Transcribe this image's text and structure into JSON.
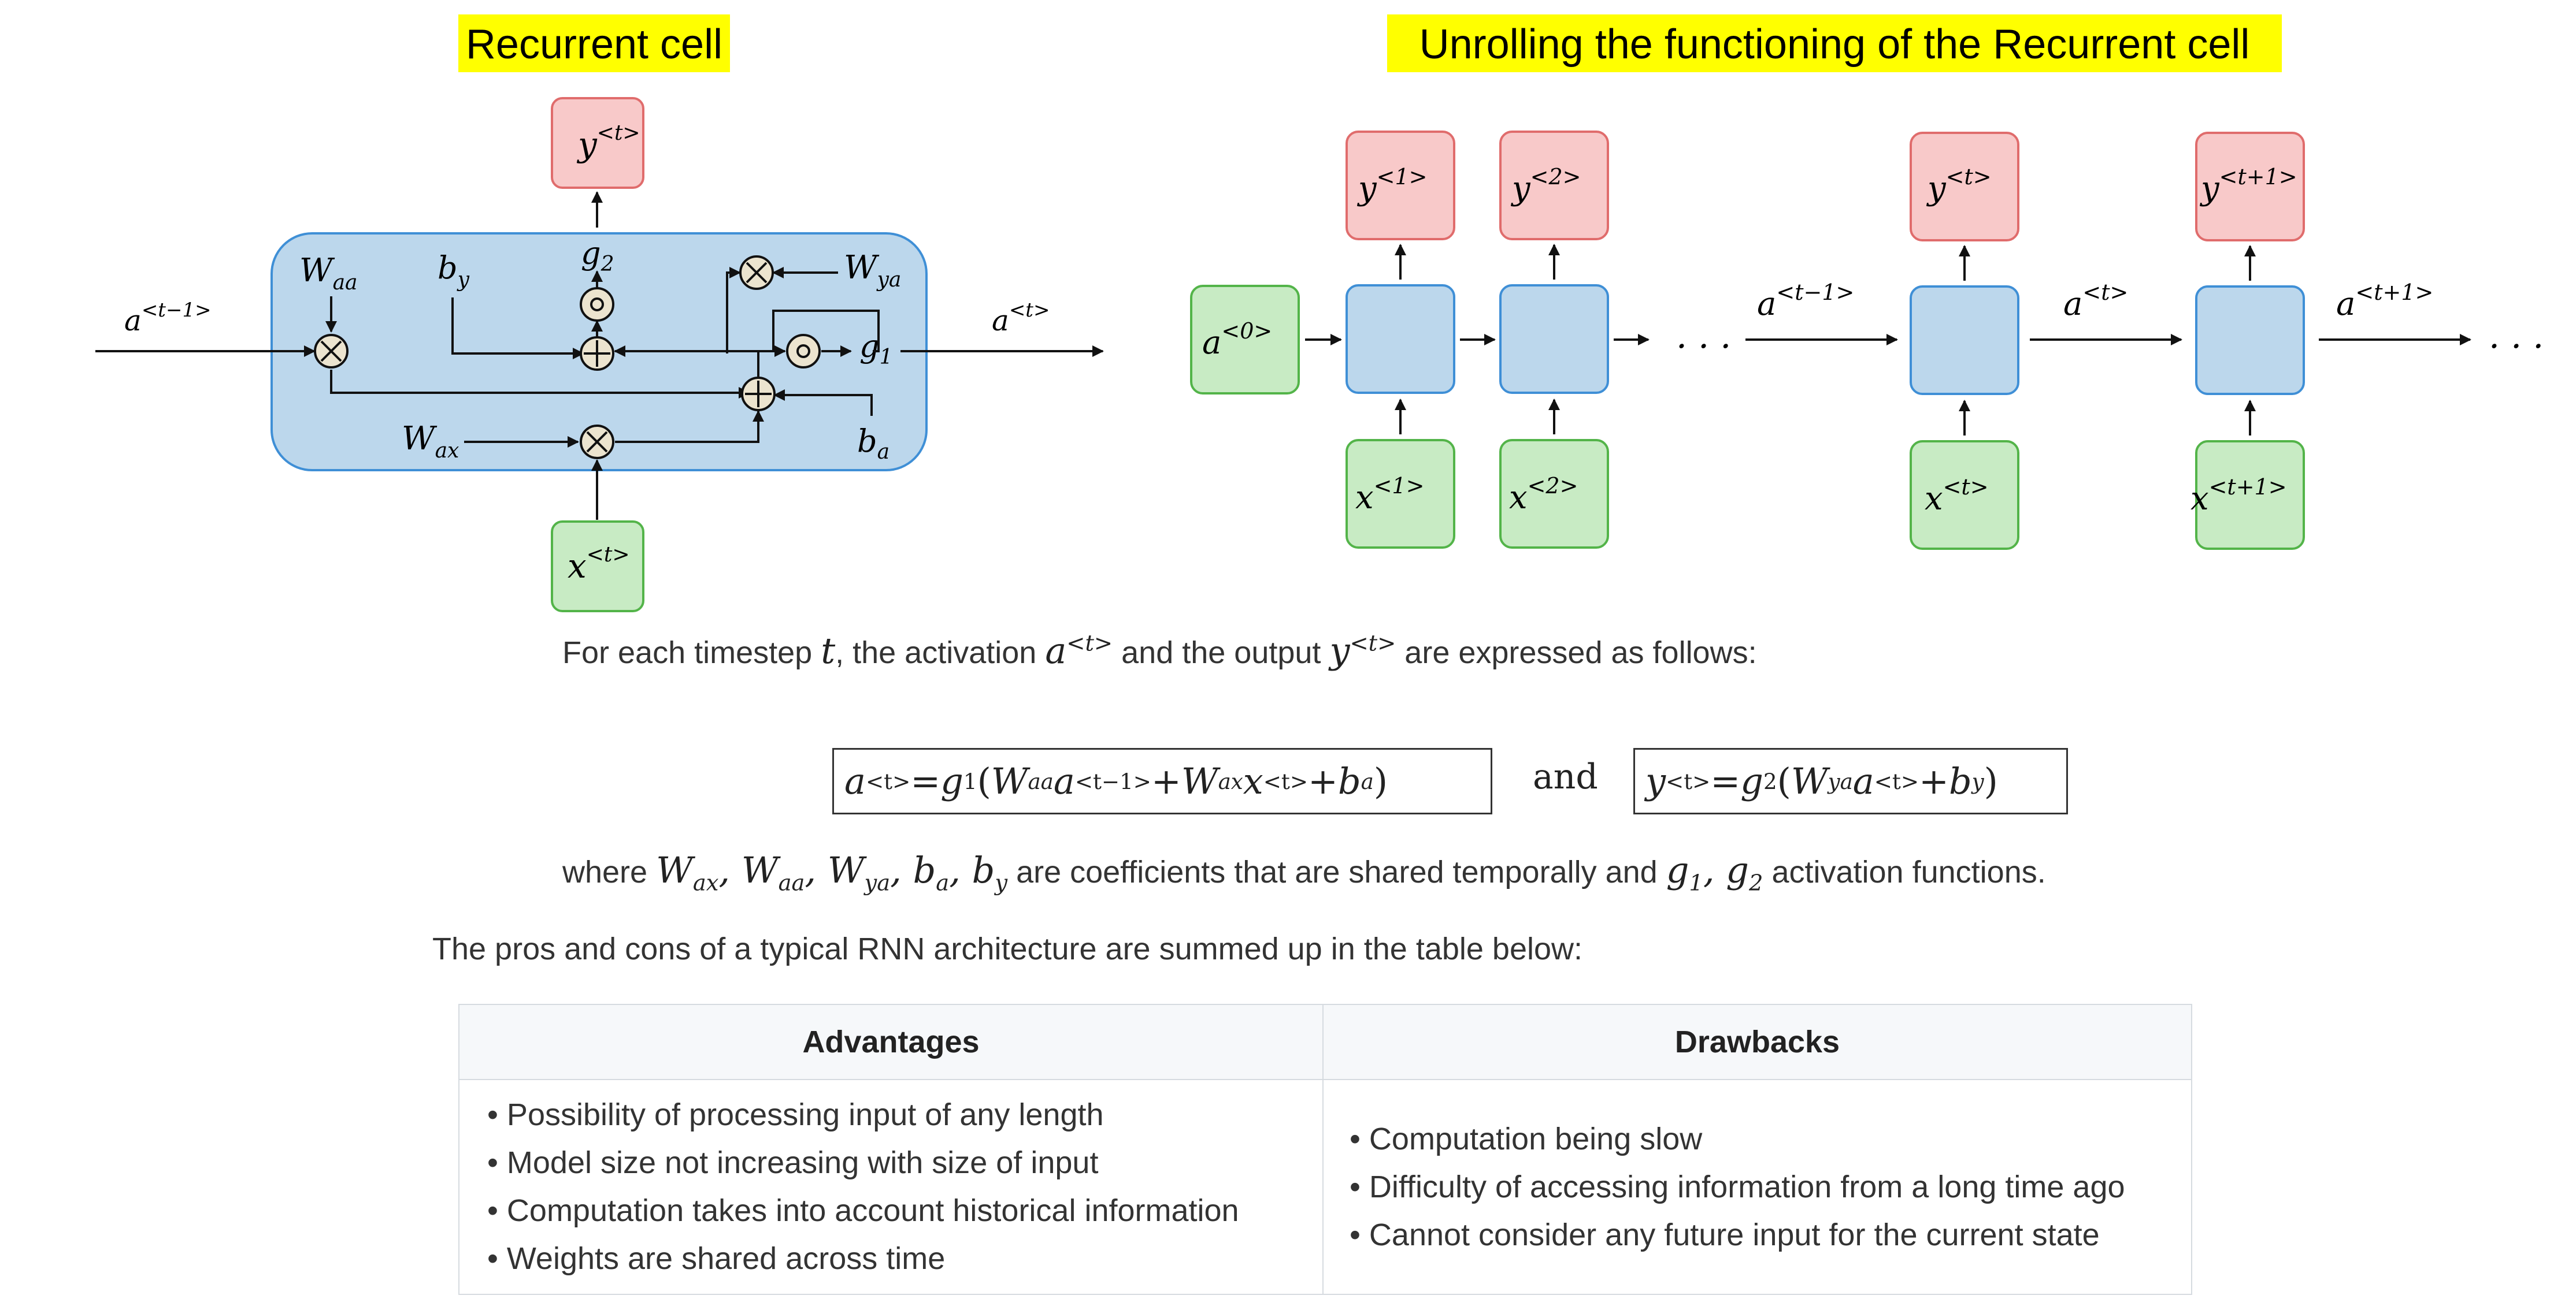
{
  "left_panel": {
    "title": "Recurrent cell",
    "a_prev": "a",
    "a_prev_sup": "<t−1>",
    "a_next": "a",
    "a_next_sup": "<t>",
    "y_label": "y",
    "y_sup": "<t>",
    "x_label": "x",
    "x_sup": "<t>",
    "w_aa": "W",
    "w_aa_sub": "aa",
    "w_ax": "W",
    "w_ax_sub": "ax",
    "w_ya": "W",
    "w_ya_sub": "ya",
    "b_y": "b",
    "b_y_sub": "y",
    "b_a": "b",
    "b_a_sub": "a",
    "g2": "g",
    "g2_sub": "2",
    "g1": "g",
    "g1_sub": "1"
  },
  "right_panel": {
    "title": "Unrolling the functioning of the Recurrent cell",
    "a0": "a",
    "a0_sup": "<0>",
    "y1_sup": "<1>",
    "y2_sup": "<2>",
    "yt_sup": "<t>",
    "yt1_sup": "<t+1>",
    "x1_sup": "<1>",
    "x2_sup": "<2>",
    "xt_sup": "<t>",
    "xt1_sup": "<t+1>",
    "y": "y",
    "x": "x",
    "a": "a",
    "a_tm1_sup": "<t−1>",
    "a_t_sup": "<t>",
    "a_tp1_sup": "<t+1>",
    "ellipsis": "· · ·"
  },
  "description": {
    "prefix": "For each timestep ",
    "t": "t",
    "mid1": ", the activation ",
    "a": "a",
    "a_sup": "<t>",
    "mid2": " and the output ",
    "y": "y",
    "y_sup": "<t>",
    "suffix": " are expressed as follows:"
  },
  "equations": {
    "eq1": {
      "lhs": "a",
      "lhs_sup": "<t>",
      "eq": " = ",
      "g": "g",
      "g_sub": "1",
      "open": "(",
      "W1": "W",
      "W1_sub": "aa",
      "a": "a",
      "a_sup": "<t−1>",
      "plus1": " + ",
      "W2": "W",
      "W2_sub": "ax",
      "x": "x",
      "x_sup": "<t>",
      "plus2": " + ",
      "b": "b",
      "b_sub": "a",
      "close": ")"
    },
    "and": "and",
    "eq2": {
      "lhs": "y",
      "lhs_sup": "<t>",
      "eq": " = ",
      "g": "g",
      "g_sub": "2",
      "open": "(",
      "W": "W",
      "W_sub": "ya",
      "a": "a",
      "a_sup": "<t>",
      "plus": " + ",
      "b": "b",
      "b_sub": "y",
      "close": ")"
    }
  },
  "where_line": {
    "prefix": "where ",
    "coeffs": [
      "W",
      "ax",
      "W",
      "aa",
      "W",
      "ya",
      "b",
      "a",
      "b",
      "y"
    ],
    "mid": " are coefficients that are shared temporally and ",
    "g1": "g",
    "g1_sub": "1",
    "g2": "g",
    "g2_sub": "2",
    "suffix": " activation functions."
  },
  "pros_cons_intro": "The pros and cons of a typical RNN architecture are summed up in the table below:",
  "table": {
    "headers": [
      "Advantages",
      "Drawbacks"
    ],
    "advantages": [
      "Possibility of processing input of any length",
      "Model size not increasing with size of input",
      "Computation takes into account historical information",
      "Weights are shared across time"
    ],
    "drawbacks": [
      "Computation being slow",
      "Difficulty of accessing information from a long time ago",
      "Cannot consider any future input for the current state"
    ]
  },
  "colors": {
    "highlight": "#ffff00",
    "cell_fill": "#bcd7ec",
    "cell_stroke": "#3f8fd6",
    "output_fill": "#f8c9c9",
    "output_stroke": "#e06c6c",
    "input_fill": "#c8ebc4",
    "input_stroke": "#53b449",
    "op_fill": "#ece4cf"
  }
}
